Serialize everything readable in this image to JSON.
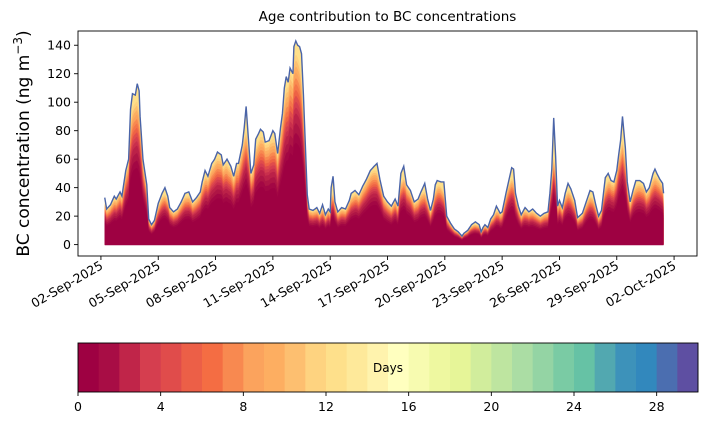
{
  "chart_data": {
    "type": "area",
    "title": "Age contribution to BC concentrations",
    "ylabel": "BC concentration (ng m",
    "ylabel_sup": "−3",
    "ylabel_close": ")",
    "xlabel": "",
    "ylim": [
      -8,
      150
    ],
    "yticks": [
      0,
      20,
      40,
      60,
      80,
      100,
      120,
      140
    ],
    "xlim_days": [
      -1.2,
      31.2
    ],
    "x_tick_labels": [
      "02-Sep-2025",
      "05-Sep-2025",
      "08-Sep-2025",
      "11-Sep-2025",
      "14-Sep-2025",
      "17-Sep-2025",
      "20-Sep-2025",
      "23-Sep-2025",
      "26-Sep-2025",
      "29-Sep-2025",
      "02-Oct-2025"
    ],
    "x_tick_days": [
      0,
      3,
      6,
      9,
      12,
      15,
      18,
      21,
      24,
      27,
      30
    ],
    "series_start_day": 0.2,
    "series_step_days": 0.125,
    "total_line_color": "#4a64a8",
    "total_key_points": [
      [
        0.2,
        33
      ],
      [
        0.3,
        25
      ],
      [
        0.5,
        28
      ],
      [
        0.7,
        34
      ],
      [
        0.8,
        32
      ],
      [
        1.0,
        37
      ],
      [
        1.1,
        34
      ],
      [
        1.3,
        52
      ],
      [
        1.45,
        60
      ],
      [
        1.55,
        95
      ],
      [
        1.65,
        106
      ],
      [
        1.8,
        105
      ],
      [
        1.9,
        113
      ],
      [
        2.0,
        108
      ],
      [
        2.05,
        90
      ],
      [
        2.2,
        60
      ],
      [
        2.4,
        42
      ],
      [
        2.5,
        18
      ],
      [
        2.65,
        14
      ],
      [
        2.8,
        17
      ],
      [
        3.0,
        29
      ],
      [
        3.2,
        36
      ],
      [
        3.35,
        40
      ],
      [
        3.5,
        34
      ],
      [
        3.6,
        26
      ],
      [
        3.8,
        23
      ],
      [
        4.0,
        25
      ],
      [
        4.2,
        30
      ],
      [
        4.4,
        36
      ],
      [
        4.6,
        37
      ],
      [
        4.8,
        30
      ],
      [
        5.0,
        33
      ],
      [
        5.2,
        37
      ],
      [
        5.3,
        44
      ],
      [
        5.45,
        52
      ],
      [
        5.6,
        48
      ],
      [
        5.8,
        57
      ],
      [
        5.95,
        60
      ],
      [
        6.1,
        65
      ],
      [
        6.3,
        63
      ],
      [
        6.4,
        56
      ],
      [
        6.6,
        60
      ],
      [
        6.8,
        55
      ],
      [
        6.95,
        48
      ],
      [
        7.1,
        57
      ],
      [
        7.2,
        57
      ],
      [
        7.4,
        70
      ],
      [
        7.5,
        82
      ],
      [
        7.6,
        97
      ],
      [
        7.7,
        78
      ],
      [
        7.85,
        50
      ],
      [
        8.0,
        56
      ],
      [
        8.1,
        74
      ],
      [
        8.25,
        78
      ],
      [
        8.35,
        81
      ],
      [
        8.5,
        79
      ],
      [
        8.6,
        72
      ],
      [
        8.8,
        73
      ],
      [
        9.0,
        80
      ],
      [
        9.1,
        78
      ],
      [
        9.25,
        64
      ],
      [
        9.4,
        82
      ],
      [
        9.5,
        92
      ],
      [
        9.6,
        110
      ],
      [
        9.7,
        118
      ],
      [
        9.8,
        114
      ],
      [
        9.9,
        124
      ],
      [
        10.05,
        120
      ],
      [
        10.1,
        139
      ],
      [
        10.2,
        143
      ],
      [
        10.3,
        140
      ],
      [
        10.4,
        139
      ],
      [
        10.5,
        134
      ],
      [
        10.6,
        105
      ],
      [
        10.7,
        70
      ],
      [
        10.8,
        35
      ],
      [
        10.9,
        25
      ],
      [
        11.1,
        24
      ],
      [
        11.3,
        26
      ],
      [
        11.45,
        22
      ],
      [
        11.6,
        28
      ],
      [
        11.75,
        21
      ],
      [
        11.9,
        25
      ],
      [
        12.0,
        23
      ],
      [
        12.05,
        40
      ],
      [
        12.15,
        48
      ],
      [
        12.25,
        30
      ],
      [
        12.4,
        23
      ],
      [
        12.6,
        26
      ],
      [
        12.8,
        25
      ],
      [
        13.0,
        31
      ],
      [
        13.1,
        36
      ],
      [
        13.3,
        38
      ],
      [
        13.5,
        35
      ],
      [
        13.7,
        41
      ],
      [
        13.9,
        46
      ],
      [
        14.1,
        52
      ],
      [
        14.3,
        55
      ],
      [
        14.45,
        57
      ],
      [
        14.6,
        46
      ],
      [
        14.8,
        34
      ],
      [
        15.0,
        30
      ],
      [
        15.2,
        27
      ],
      [
        15.4,
        32
      ],
      [
        15.55,
        27
      ],
      [
        15.7,
        50
      ],
      [
        15.85,
        55
      ],
      [
        16.0,
        42
      ],
      [
        16.2,
        38
      ],
      [
        16.4,
        30
      ],
      [
        16.6,
        32
      ],
      [
        16.75,
        37
      ],
      [
        16.95,
        43
      ],
      [
        17.1,
        32
      ],
      [
        17.25,
        24
      ],
      [
        17.4,
        32
      ],
      [
        17.5,
        42
      ],
      [
        17.6,
        45
      ],
      [
        17.8,
        44
      ],
      [
        17.95,
        44
      ],
      [
        18.1,
        20
      ],
      [
        18.3,
        15
      ],
      [
        18.5,
        11
      ],
      [
        18.7,
        9
      ],
      [
        18.9,
        6
      ],
      [
        19.0,
        8
      ],
      [
        19.2,
        10
      ],
      [
        19.4,
        14
      ],
      [
        19.6,
        16
      ],
      [
        19.8,
        14
      ],
      [
        19.9,
        9
      ],
      [
        20.0,
        12
      ],
      [
        20.1,
        14
      ],
      [
        20.25,
        12
      ],
      [
        20.4,
        18
      ],
      [
        20.55,
        21
      ],
      [
        20.7,
        27
      ],
      [
        20.9,
        22
      ],
      [
        21.0,
        23
      ],
      [
        21.2,
        36
      ],
      [
        21.35,
        45
      ],
      [
        21.5,
        54
      ],
      [
        21.6,
        53
      ],
      [
        21.7,
        36
      ],
      [
        21.85,
        27
      ],
      [
        22.0,
        21
      ],
      [
        22.2,
        26
      ],
      [
        22.4,
        23
      ],
      [
        22.6,
        25
      ],
      [
        22.8,
        22
      ],
      [
        23.0,
        20
      ],
      [
        23.2,
        22
      ],
      [
        23.4,
        23
      ],
      [
        23.5,
        36
      ],
      [
        23.6,
        53
      ],
      [
        23.7,
        89
      ],
      [
        23.8,
        62
      ],
      [
        23.9,
        27
      ],
      [
        24.0,
        31
      ],
      [
        24.15,
        26
      ],
      [
        24.3,
        36
      ],
      [
        24.45,
        43
      ],
      [
        24.6,
        39
      ],
      [
        24.8,
        31
      ],
      [
        24.95,
        19
      ],
      [
        25.2,
        22
      ],
      [
        25.4,
        30
      ],
      [
        25.6,
        38
      ],
      [
        25.75,
        37
      ],
      [
        25.9,
        28
      ],
      [
        26.05,
        20
      ],
      [
        26.2,
        24
      ],
      [
        26.4,
        47
      ],
      [
        26.55,
        50
      ],
      [
        26.7,
        45
      ],
      [
        26.85,
        44
      ],
      [
        27.0,
        52
      ],
      [
        27.1,
        63
      ],
      [
        27.2,
        73
      ],
      [
        27.3,
        90
      ],
      [
        27.45,
        68
      ],
      [
        27.55,
        44
      ],
      [
        27.7,
        30
      ],
      [
        27.85,
        38
      ],
      [
        28.0,
        45
      ],
      [
        28.2,
        45
      ],
      [
        28.4,
        43
      ],
      [
        28.55,
        37
      ],
      [
        28.7,
        40
      ],
      [
        28.9,
        50
      ],
      [
        29.0,
        53
      ],
      [
        29.1,
        50
      ],
      [
        29.25,
        46
      ],
      [
        29.4,
        43
      ],
      [
        29.45,
        36
      ]
    ],
    "colorbar": {
      "label": "Days",
      "ticks": [
        0,
        4,
        8,
        12,
        16,
        20,
        24,
        28
      ],
      "range": [
        0,
        30
      ],
      "n_bins": 30,
      "colors": [
        "#9e0142",
        "#a80d45",
        "#c02549",
        "#d53e4f",
        "#e04c4b",
        "#ec5f47",
        "#f46d43",
        "#f88950",
        "#fba35d",
        "#fdae61",
        "#fdbf70",
        "#fed380",
        "#fee08b",
        "#fee99a",
        "#fff3ad",
        "#ffffbf",
        "#f7fbb0",
        "#eef8a0",
        "#e6f598",
        "#d1ed9c",
        "#bee5a0",
        "#abdda4",
        "#94d4a4",
        "#7acba4",
        "#66c2a5",
        "#52a8b0",
        "#3d92ba",
        "#3288bd",
        "#4b6eb0",
        "#5e4fa2"
      ]
    }
  }
}
